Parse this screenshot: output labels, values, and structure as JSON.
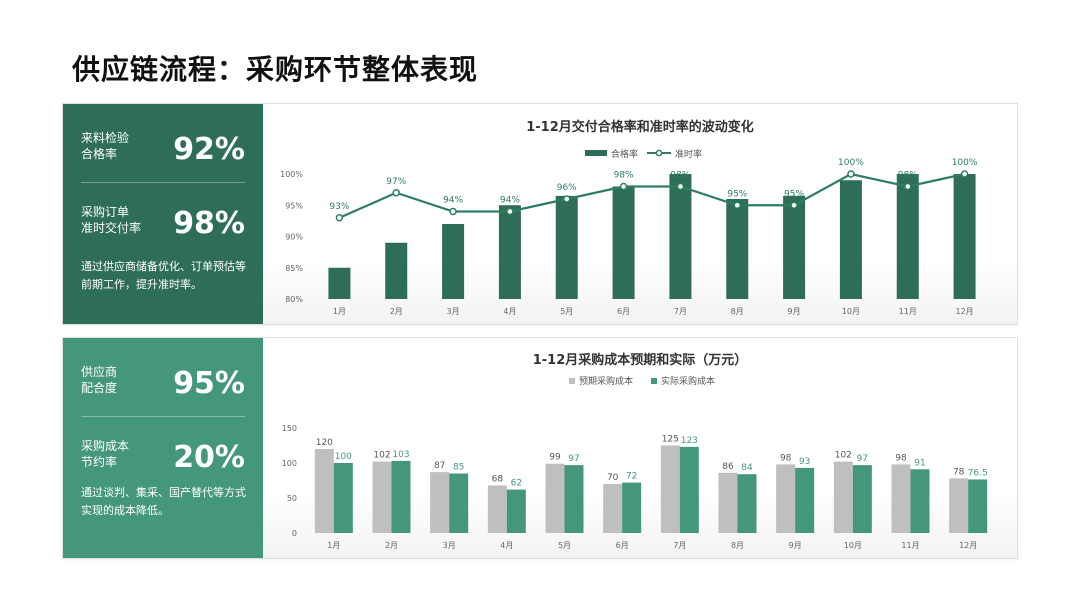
{
  "page": {
    "title": "供应链流程：采购环节整体表现"
  },
  "panel_1": {
    "kpi_1": {
      "label": "来料检验\n合格率",
      "value": "92%"
    },
    "kpi_2": {
      "label": "采购订单\n准时交付率",
      "value": "98%"
    },
    "note": "通过供应商储备优化、订单预估等前期工作，提升准时率。"
  },
  "panel_2": {
    "kpi_1": {
      "label": "供应商\n配合度",
      "value": "95%"
    },
    "kpi_2": {
      "label": "采购成本\n节约率",
      "value": "20%"
    },
    "note": "通过谈判、集采、国产替代等方式实现的成本降低。"
  },
  "colors": {
    "dark_green": "#2e6e57",
    "green": "#44977a",
    "gray": "#bfbfbf",
    "line": "#2e7d5e"
  },
  "chart_data": [
    {
      "type": "bar",
      "title": "1-12月交付合格率和准时率的波动变化",
      "categories": [
        "1月",
        "2月",
        "3月",
        "4月",
        "5月",
        "6月",
        "7月",
        "8月",
        "9月",
        "10月",
        "11月",
        "12月"
      ],
      "ylim": [
        80,
        100
      ],
      "yticks": [
        "80%",
        "85%",
        "90%",
        "95%",
        "100%"
      ],
      "legend_position": "top-center",
      "series": [
        {
          "name": "合格率",
          "kind": "bar",
          "values": [
            85,
            89,
            92,
            95,
            96.5,
            98,
            100,
            96,
            96.5,
            99,
            100,
            100
          ]
        },
        {
          "name": "准时率",
          "kind": "line",
          "values": [
            93,
            97,
            94,
            94,
            96,
            98,
            98,
            95,
            95,
            100,
            98,
            100
          ],
          "labels": [
            "93%",
            "97%",
            "94%",
            "94%",
            "96%",
            "98%",
            "98%",
            "95%",
            "95%",
            "100%",
            "98%",
            "100%"
          ]
        }
      ]
    },
    {
      "type": "bar",
      "title": "1-12月采购成本预期和实际（万元）",
      "categories": [
        "1月",
        "2月",
        "3月",
        "4月",
        "5月",
        "6月",
        "7月",
        "8月",
        "9月",
        "10月",
        "11月",
        "12月"
      ],
      "ylim": [
        0,
        150
      ],
      "yticks": [
        "0",
        "50",
        "100",
        "150"
      ],
      "legend_position": "top-center",
      "series": [
        {
          "name": "预期采购成本",
          "values": [
            120,
            102,
            87,
            68,
            99,
            70,
            125,
            86,
            98,
            102,
            98,
            78
          ],
          "labels": [
            "120",
            "102",
            "87",
            "68",
            "99",
            "70",
            "125",
            "86",
            "98",
            "102",
            "98",
            "78"
          ]
        },
        {
          "name": "实际采购成本",
          "values": [
            100,
            103,
            85,
            62,
            97,
            72,
            123,
            84,
            93,
            97,
            91,
            76.5
          ],
          "labels": [
            "100",
            "103",
            "85",
            "62",
            "97",
            "72",
            "123",
            "84",
            "93",
            "97",
            "91",
            "76.5"
          ]
        }
      ]
    }
  ]
}
